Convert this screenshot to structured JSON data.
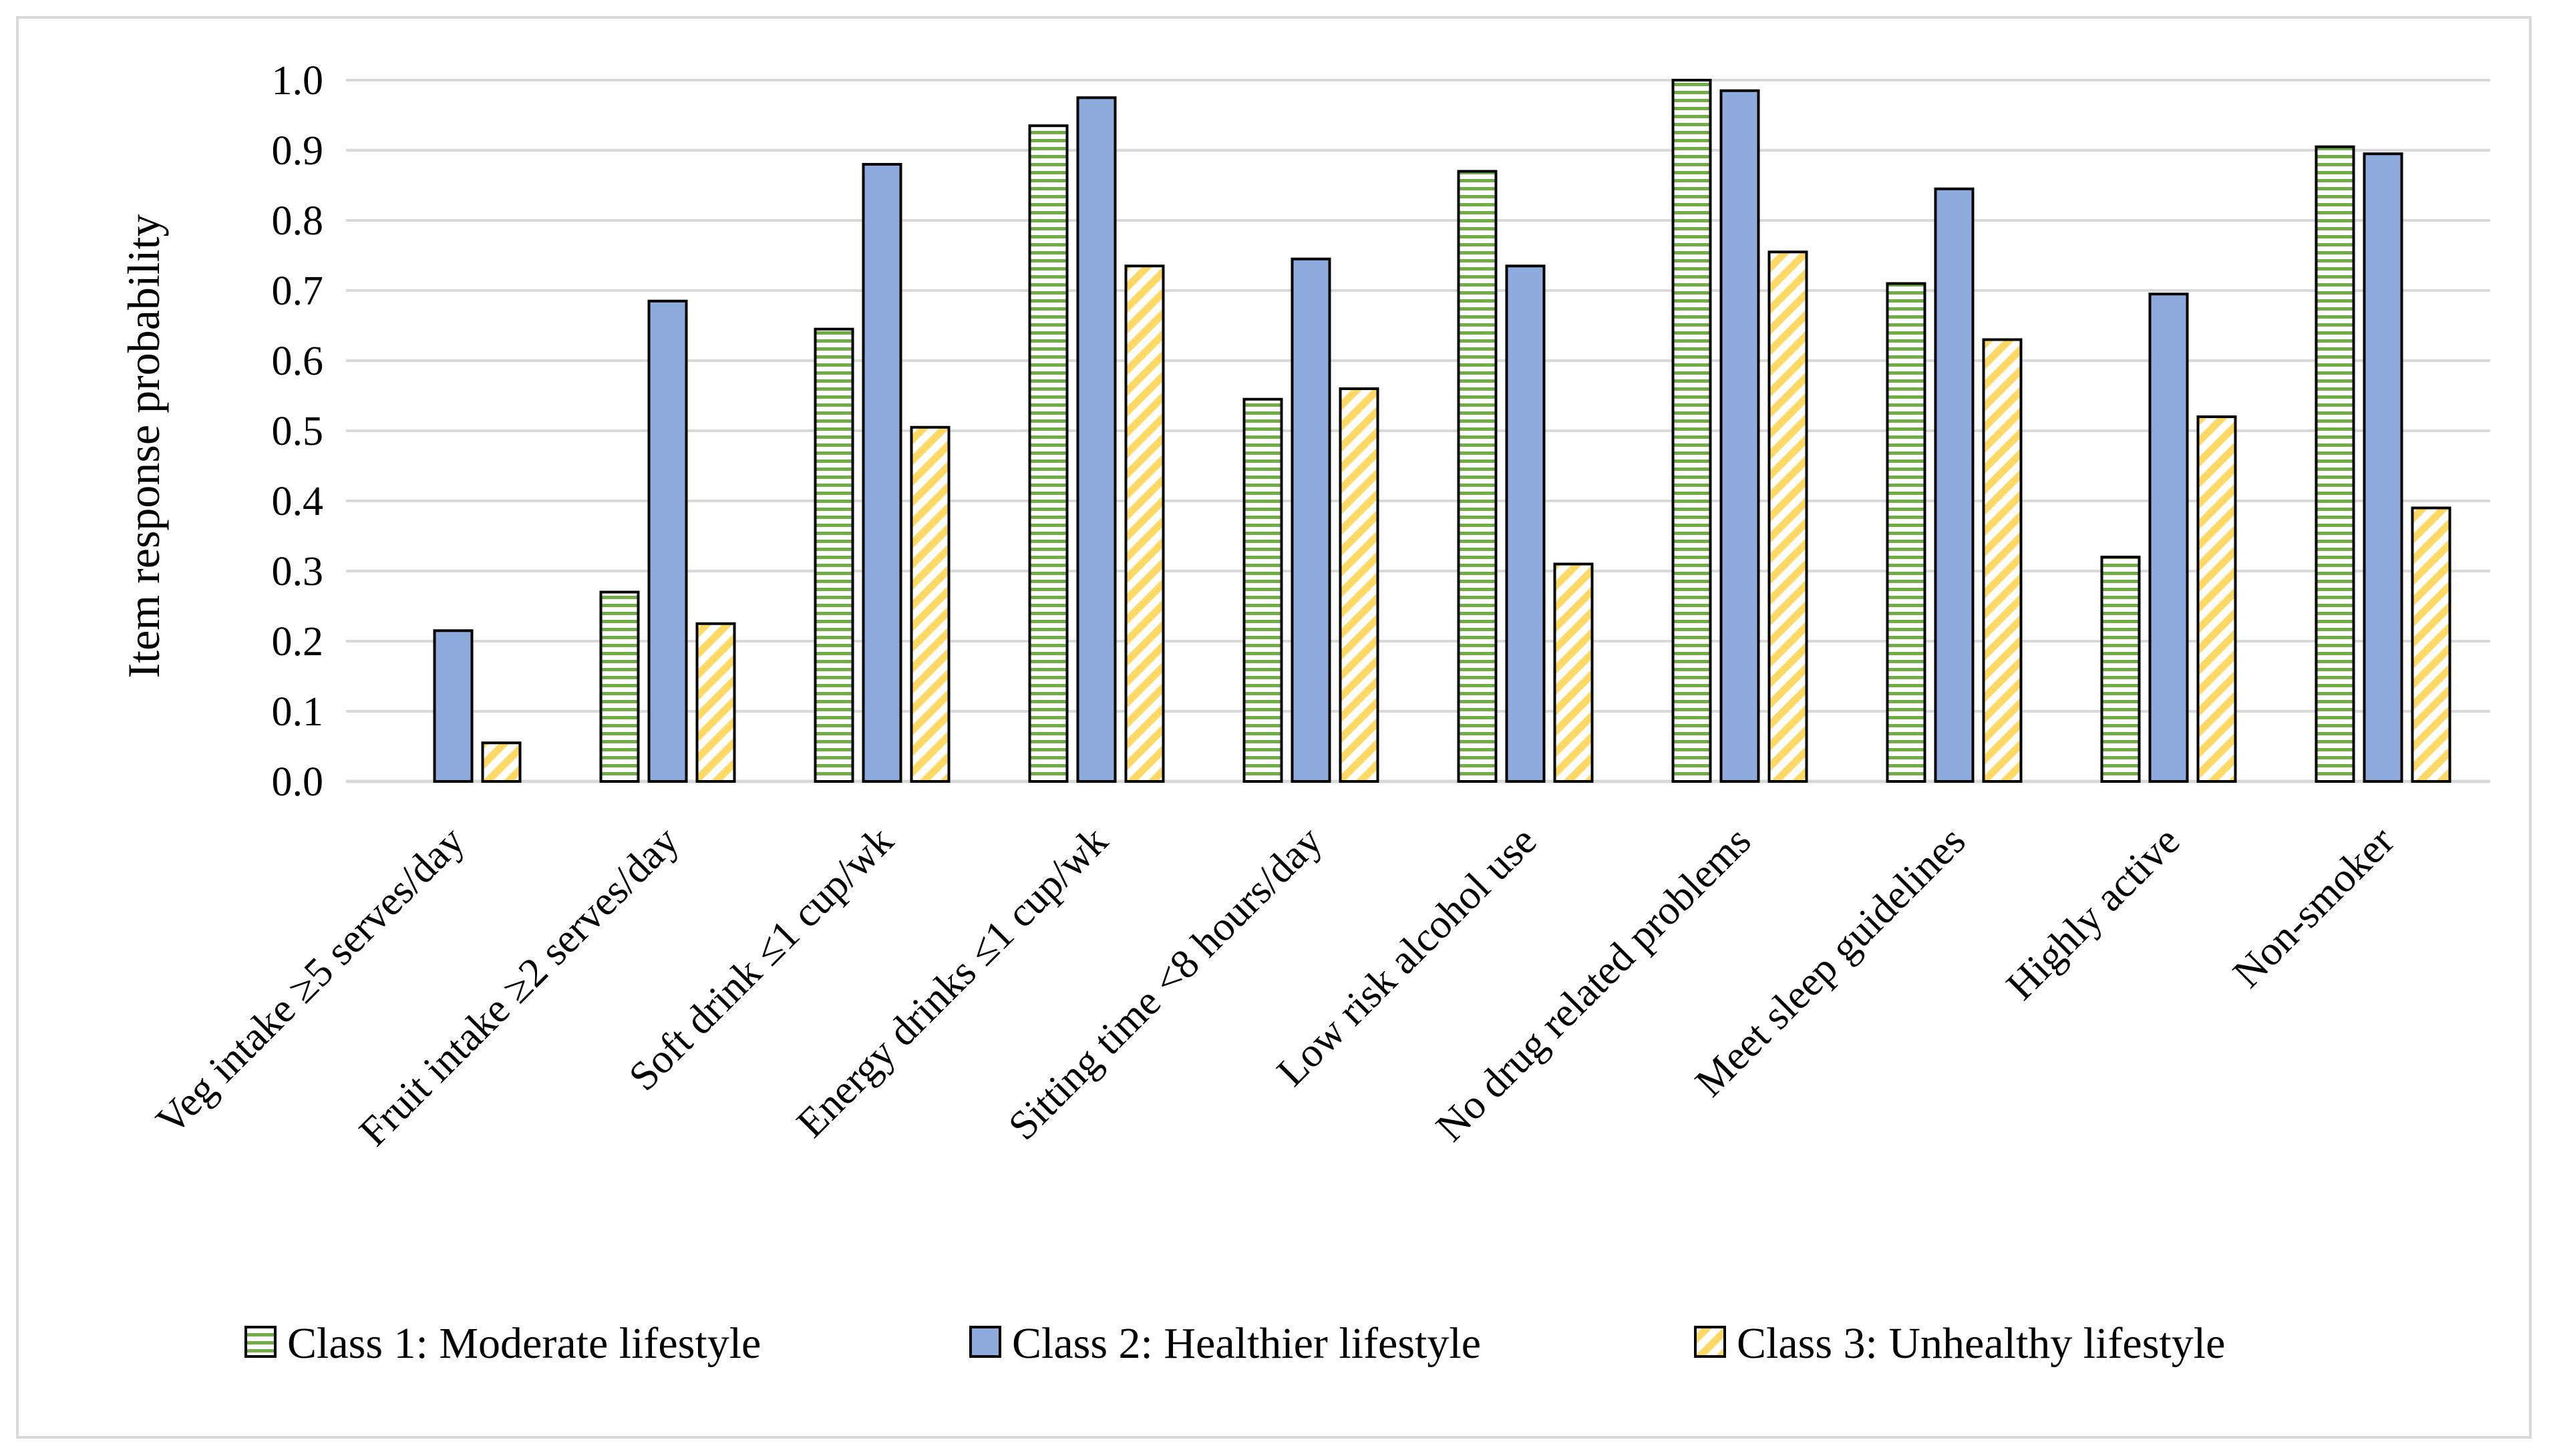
{
  "chart_data": {
    "type": "bar",
    "title": "",
    "xlabel": "",
    "ylabel": "Item response probability",
    "ylim": [
      0,
      1.0
    ],
    "yticks": [
      "0.0",
      "0.1",
      "0.2",
      "0.3",
      "0.4",
      "0.5",
      "0.6",
      "0.7",
      "0.8",
      "0.9",
      "1.0"
    ],
    "grid": true,
    "legend_position": "bottom",
    "categories": [
      "Veg intake ≥5 serves/day",
      "Fruit intake ≥2 serves/day",
      "Soft drink ≤1 cup/wk",
      "Energy drinks ≤1 cup/wk",
      "Sitting time <8 hours/day",
      "Low risk alcohol use",
      "No drug related problems",
      "Meet sleep guidelines",
      "Highly active",
      "Non-smoker"
    ],
    "series": [
      {
        "name": "Class 1: Moderate lifestyle",
        "color": "#70ad47",
        "pattern": "horizontal-stripes",
        "values": [
          0.0,
          0.27,
          0.645,
          0.935,
          0.545,
          0.87,
          1.0,
          0.71,
          0.32,
          0.905
        ]
      },
      {
        "name": "Class 2: Healthier lifestyle",
        "color": "#8faadc",
        "pattern": "solid",
        "values": [
          0.215,
          0.685,
          0.88,
          0.975,
          0.745,
          0.735,
          0.985,
          0.845,
          0.695,
          0.895
        ]
      },
      {
        "name": "Class 3: Unhealthy lifestyle",
        "color": "#ffd966",
        "pattern": "diagonal-stripes",
        "values": [
          0.055,
          0.225,
          0.505,
          0.735,
          0.56,
          0.31,
          0.755,
          0.63,
          0.52,
          0.39
        ]
      }
    ]
  }
}
